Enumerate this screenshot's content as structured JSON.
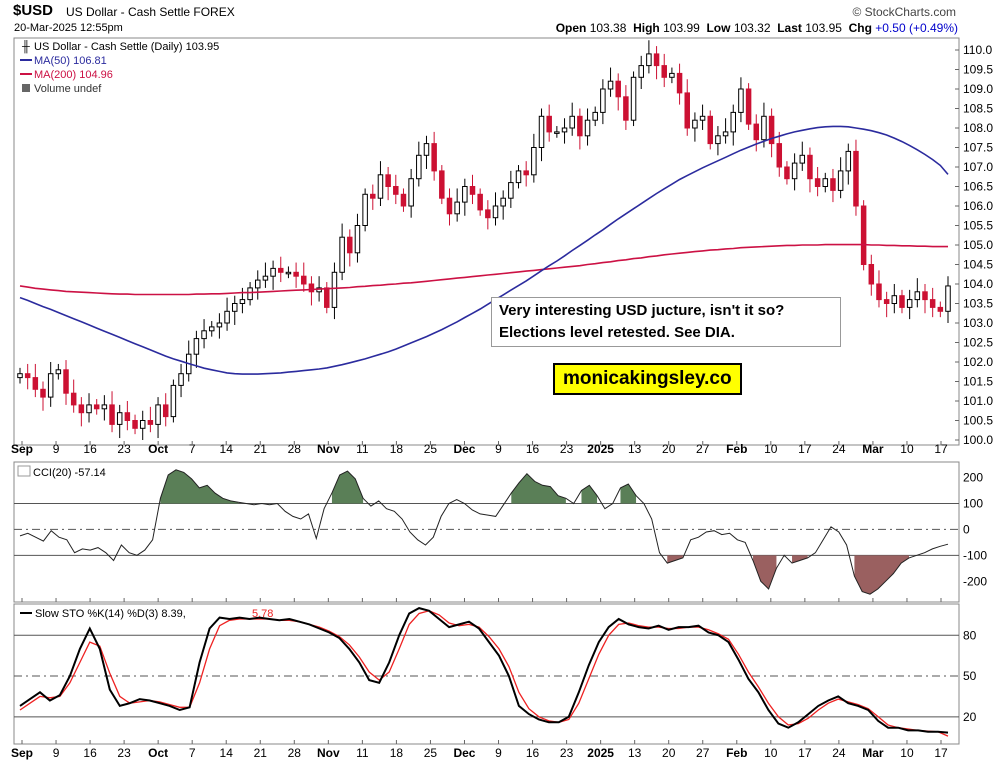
{
  "header": {
    "symbol": "$USD",
    "name": "US Dollar - Cash Settle FOREX",
    "datetime": "20-Mar-2025 12:55pm",
    "brand": "© StockCharts.com",
    "open_label": "Open",
    "open": "103.38",
    "high_label": "High",
    "high": "103.99",
    "low_label": "Low",
    "low": "103.32",
    "last_label": "Last",
    "last": "103.95",
    "chg_label": "Chg",
    "chg": "+0.50 (+0.49%)",
    "chg_color": "#0000cc"
  },
  "legend": {
    "main": "US Dollar - Cash Settle (Daily) 103.95",
    "ma50": "MA(50) 106.81",
    "ma200": "MA(200) 104.96",
    "volume": "Volume undef",
    "cci": "CCI(20) -57.14",
    "sto": "Slow STO %K(14) %D(3) 8.39,",
    "sto_d": "5.78"
  },
  "annotation": {
    "note": "Very interesting USD jucture, isn't it so? Elections level retested. See DIA.",
    "site": "monicakingsley.co"
  },
  "colors": {
    "up": "#000000",
    "down": "#cc1133",
    "ma50": "#2b2b9e",
    "ma200": "#cc1144",
    "cci_pos": "#5a7f57",
    "cci_neg": "#9a6060",
    "stoD": "#ee2222"
  },
  "chart_data": [
    {
      "type": "candlestick",
      "title": "US Dollar - Cash Settle (Daily) 103.95",
      "ylim": [
        99.8,
        110.4
      ],
      "yticks": [
        "100.0",
        "100.5",
        "101.0",
        "101.5",
        "102.0",
        "102.5",
        "103.0",
        "103.5",
        "104.0",
        "104.5",
        "105.0",
        "105.5",
        "106.0",
        "106.5",
        "107.0",
        "107.5",
        "108.0",
        "108.5",
        "109.0",
        "109.5",
        "110.0"
      ],
      "xticks": [
        "Sep",
        "9",
        "16",
        "23",
        "Oct",
        "7",
        "14",
        "21",
        "28",
        "Nov",
        "11",
        "18",
        "25",
        "Dec",
        "9",
        "16",
        "23",
        "2025",
        "13",
        "20",
        "27",
        "Feb",
        "10",
        "17",
        "24",
        "Mar",
        "10",
        "17"
      ],
      "close": [
        101.7,
        101.6,
        101.3,
        101.1,
        101.7,
        101.8,
        101.2,
        100.9,
        100.7,
        100.9,
        100.8,
        100.9,
        100.4,
        100.7,
        100.5,
        100.3,
        100.5,
        100.4,
        100.9,
        100.6,
        101.4,
        101.7,
        102.2,
        102.6,
        102.8,
        102.9,
        103.0,
        103.3,
        103.5,
        103.6,
        103.9,
        104.1,
        104.2,
        104.4,
        104.3,
        104.3,
        104.2,
        104.0,
        103.8,
        103.9,
        103.4,
        104.3,
        105.2,
        104.8,
        105.5,
        106.3,
        106.2,
        106.8,
        106.5,
        106.3,
        106.0,
        106.7,
        107.3,
        107.6,
        106.9,
        106.2,
        105.8,
        106.1,
        106.5,
        106.3,
        105.9,
        105.7,
        106.0,
        106.2,
        106.6,
        106.9,
        106.8,
        107.5,
        108.3,
        107.9,
        107.9,
        108.0,
        108.3,
        107.8,
        108.2,
        108.4,
        109.0,
        109.2,
        108.8,
        108.2,
        109.3,
        109.6,
        109.9,
        109.6,
        109.3,
        109.4,
        108.9,
        108.0,
        108.2,
        108.3,
        107.6,
        107.8,
        107.9,
        108.4,
        109.0,
        108.1,
        107.7,
        108.3,
        107.6,
        107.0,
        106.7,
        107.1,
        107.3,
        106.7,
        106.5,
        106.7,
        106.4,
        106.9,
        107.4,
        106.0,
        104.5,
        104.0,
        103.6,
        103.5,
        103.7,
        103.4,
        103.6,
        103.8,
        103.6,
        103.4,
        103.3,
        103.95
      ],
      "ma50": [
        103.65,
        103.58,
        103.5,
        103.42,
        103.35,
        103.27,
        103.19,
        103.11,
        103.03,
        102.95,
        102.87,
        102.79,
        102.71,
        102.63,
        102.55,
        102.47,
        102.39,
        102.31,
        102.23,
        102.15,
        102.08,
        102.02,
        101.96,
        101.9,
        101.84,
        101.8,
        101.76,
        101.72,
        101.7,
        101.69,
        101.69,
        101.69,
        101.7,
        101.71,
        101.72,
        101.74,
        101.76,
        101.78,
        101.8,
        101.82,
        101.85,
        101.89,
        101.93,
        101.98,
        102.03,
        102.08,
        102.14,
        102.2,
        102.26,
        102.33,
        102.41,
        102.49,
        102.57,
        102.65,
        102.74,
        102.83,
        102.93,
        103.03,
        103.14,
        103.25,
        103.36,
        103.48,
        103.6,
        103.72,
        103.84,
        103.96,
        104.08,
        104.21,
        104.34,
        104.47,
        104.59,
        104.72,
        104.86,
        104.99,
        105.12,
        105.26,
        105.39,
        105.53,
        105.67,
        105.8,
        105.93,
        106.06,
        106.19,
        106.32,
        106.44,
        106.56,
        106.68,
        106.78,
        106.88,
        106.98,
        107.07,
        107.16,
        107.25,
        107.34,
        107.43,
        107.51,
        107.59,
        107.66,
        107.73,
        107.79,
        107.85,
        107.9,
        107.94,
        107.98,
        108.01,
        108.03,
        108.04,
        108.04,
        108.03,
        108.0,
        107.97,
        107.93,
        107.88,
        107.82,
        107.74,
        107.65,
        107.55,
        107.44,
        107.32,
        107.19,
        107.04,
        106.81
      ],
      "ma200": [
        103.95,
        103.92,
        103.89,
        103.87,
        103.85,
        103.83,
        103.81,
        103.8,
        103.79,
        103.78,
        103.77,
        103.76,
        103.75,
        103.74,
        103.74,
        103.73,
        103.73,
        103.73,
        103.73,
        103.73,
        103.73,
        103.73,
        103.73,
        103.74,
        103.74,
        103.75,
        103.75,
        103.76,
        103.77,
        103.78,
        103.78,
        103.79,
        103.8,
        103.81,
        103.82,
        103.83,
        103.84,
        103.85,
        103.86,
        103.87,
        103.88,
        103.89,
        103.9,
        103.91,
        103.93,
        103.94,
        103.96,
        103.97,
        103.99,
        104.0,
        104.02,
        104.03,
        104.05,
        104.07,
        104.09,
        104.11,
        104.13,
        104.15,
        104.17,
        104.19,
        104.21,
        104.23,
        104.25,
        104.27,
        104.29,
        104.31,
        104.33,
        104.35,
        104.37,
        104.39,
        104.41,
        104.43,
        104.45,
        104.47,
        104.5,
        104.52,
        104.55,
        104.57,
        104.6,
        104.62,
        104.65,
        104.67,
        104.7,
        104.72,
        104.75,
        104.77,
        104.79,
        104.81,
        104.83,
        104.85,
        104.87,
        104.88,
        104.9,
        104.91,
        104.93,
        104.94,
        104.95,
        104.96,
        104.97,
        104.98,
        104.99,
        104.99,
        105.0,
        105.0,
        105.0,
        105.01,
        105.01,
        105.01,
        105.01,
        105.01,
        105.01,
        105.0,
        105.0,
        104.99,
        104.99,
        104.98,
        104.98,
        104.97,
        104.97,
        104.96,
        104.96,
        104.96
      ]
    },
    {
      "type": "line",
      "title": "CCI(20) -57.14",
      "ylim": [
        -280,
        260
      ],
      "yticks": [
        "200",
        "100",
        "0",
        "-100",
        "-200"
      ],
      "reference_lines": [
        100,
        0,
        -100
      ],
      "values": [
        -25,
        -15,
        -30,
        -45,
        -5,
        -30,
        -40,
        -90,
        -75,
        -80,
        -70,
        -90,
        -120,
        -60,
        -90,
        -100,
        -80,
        -40,
        120,
        210,
        230,
        220,
        195,
        160,
        170,
        140,
        120,
        110,
        105,
        100,
        95,
        100,
        95,
        100,
        70,
        50,
        40,
        60,
        -35,
        80,
        140,
        210,
        225,
        195,
        120,
        90,
        110,
        80,
        70,
        40,
        -10,
        -40,
        -60,
        -30,
        50,
        100,
        115,
        100,
        75,
        60,
        55,
        50,
        95,
        140,
        180,
        215,
        185,
        170,
        165,
        130,
        120,
        100,
        150,
        170,
        130,
        80,
        100,
        160,
        175,
        130,
        100,
        40,
        -90,
        -130,
        -120,
        -110,
        -40,
        -30,
        -10,
        -5,
        -20,
        -15,
        -40,
        -50,
        -120,
        -200,
        -230,
        -150,
        -100,
        -130,
        -120,
        -110,
        -90,
        -40,
        10,
        -10,
        -60,
        -180,
        -240,
        -250,
        -230,
        -200,
        -170,
        -130,
        -110,
        -100,
        -90,
        -75,
        -65,
        -57
      ]
    },
    {
      "type": "line",
      "title": "Slow STO %K(14) %D(3) 8.39, 5.78",
      "ylim": [
        0,
        103
      ],
      "yticks": [
        "80",
        "50",
        "20"
      ],
      "reference_lines": [
        80,
        50,
        20
      ],
      "series": [
        {
          "name": "%K",
          "values": [
            28,
            33,
            38,
            32,
            36,
            50,
            70,
            85,
            70,
            40,
            28,
            30,
            33,
            32,
            30,
            28,
            25,
            27,
            60,
            85,
            93,
            92,
            93,
            92,
            93,
            92,
            91,
            92,
            90,
            88,
            85,
            82,
            78,
            70,
            60,
            47,
            45,
            60,
            80,
            96,
            100,
            98,
            92,
            86,
            88,
            90,
            85,
            75,
            65,
            50,
            28,
            22,
            18,
            16,
            16,
            20,
            38,
            58,
            75,
            86,
            92,
            88,
            86,
            85,
            87,
            84,
            86,
            86,
            87,
            82,
            80,
            75,
            62,
            48,
            38,
            25,
            15,
            12,
            16,
            22,
            28,
            32,
            35,
            30,
            28,
            25,
            17,
            12,
            12,
            10,
            10,
            9,
            9,
            8.39
          ]
        },
        {
          "name": "%D",
          "values": [
            25,
            30,
            35,
            34,
            35,
            45,
            60,
            75,
            72,
            52,
            35,
            30,
            31,
            32,
            31,
            29,
            27,
            27,
            45,
            70,
            87,
            91,
            92,
            92,
            92,
            92,
            91,
            91,
            90,
            88,
            86,
            83,
            79,
            73,
            64,
            53,
            47,
            53,
            70,
            88,
            96,
            98,
            95,
            89,
            87,
            88,
            86,
            79,
            70,
            57,
            38,
            26,
            20,
            17,
            16,
            18,
            30,
            48,
            66,
            80,
            88,
            89,
            87,
            86,
            86,
            85,
            85,
            86,
            86,
            84,
            81,
            77,
            66,
            53,
            42,
            30,
            20,
            14,
            15,
            19,
            25,
            30,
            33,
            31,
            29,
            26,
            20,
            14,
            12,
            11,
            10,
            9.5,
            9,
            5.78
          ]
        }
      ]
    }
  ]
}
